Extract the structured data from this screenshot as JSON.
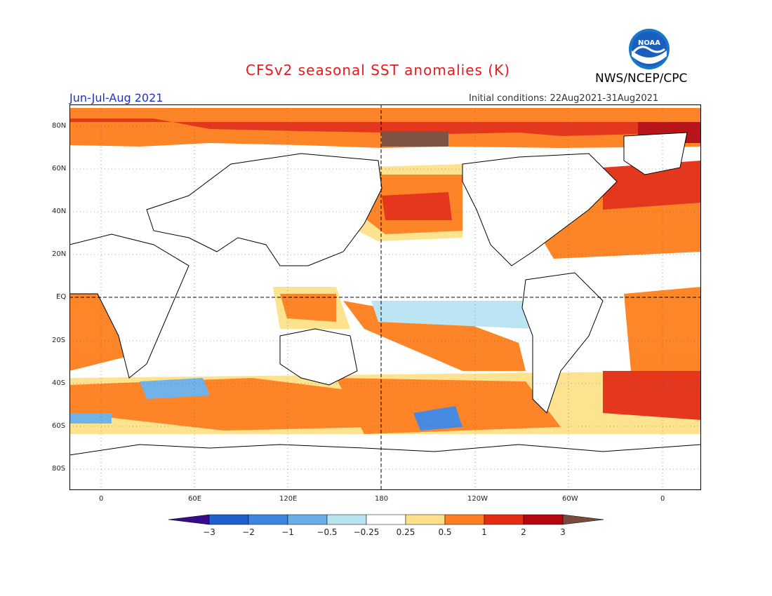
{
  "header": {
    "title": "CFSv2 seasonal SST anomalies (K)",
    "season": "Jun-Jul-Aug 2021",
    "initial_conditions": "Initial conditions: 22Aug2021-31Aug2021",
    "agency": "NWS/NCEP/CPC",
    "logo_text": "NOAA"
  },
  "map": {
    "lat_labels": [
      "80N",
      "60N",
      "40N",
      "20N",
      "EQ",
      "20S",
      "40S",
      "60S",
      "80S"
    ],
    "lon_labels": [
      "0",
      "60E",
      "120E",
      "180",
      "120W",
      "60W",
      "0"
    ]
  },
  "colorbar": {
    "labels": [
      "-3",
      "-2",
      "-1",
      "-0.5",
      "-0.25",
      "0.25",
      "0.5",
      "1",
      "2",
      "3"
    ],
    "colors": [
      "#3a0a8c",
      "#1f5fd0",
      "#3d85e0",
      "#6aaee8",
      "#b8e4f2",
      "#ffffff",
      "#fde18a",
      "#fd7f1d",
      "#e42d12",
      "#b5080e",
      "#7a4a3c"
    ]
  }
}
